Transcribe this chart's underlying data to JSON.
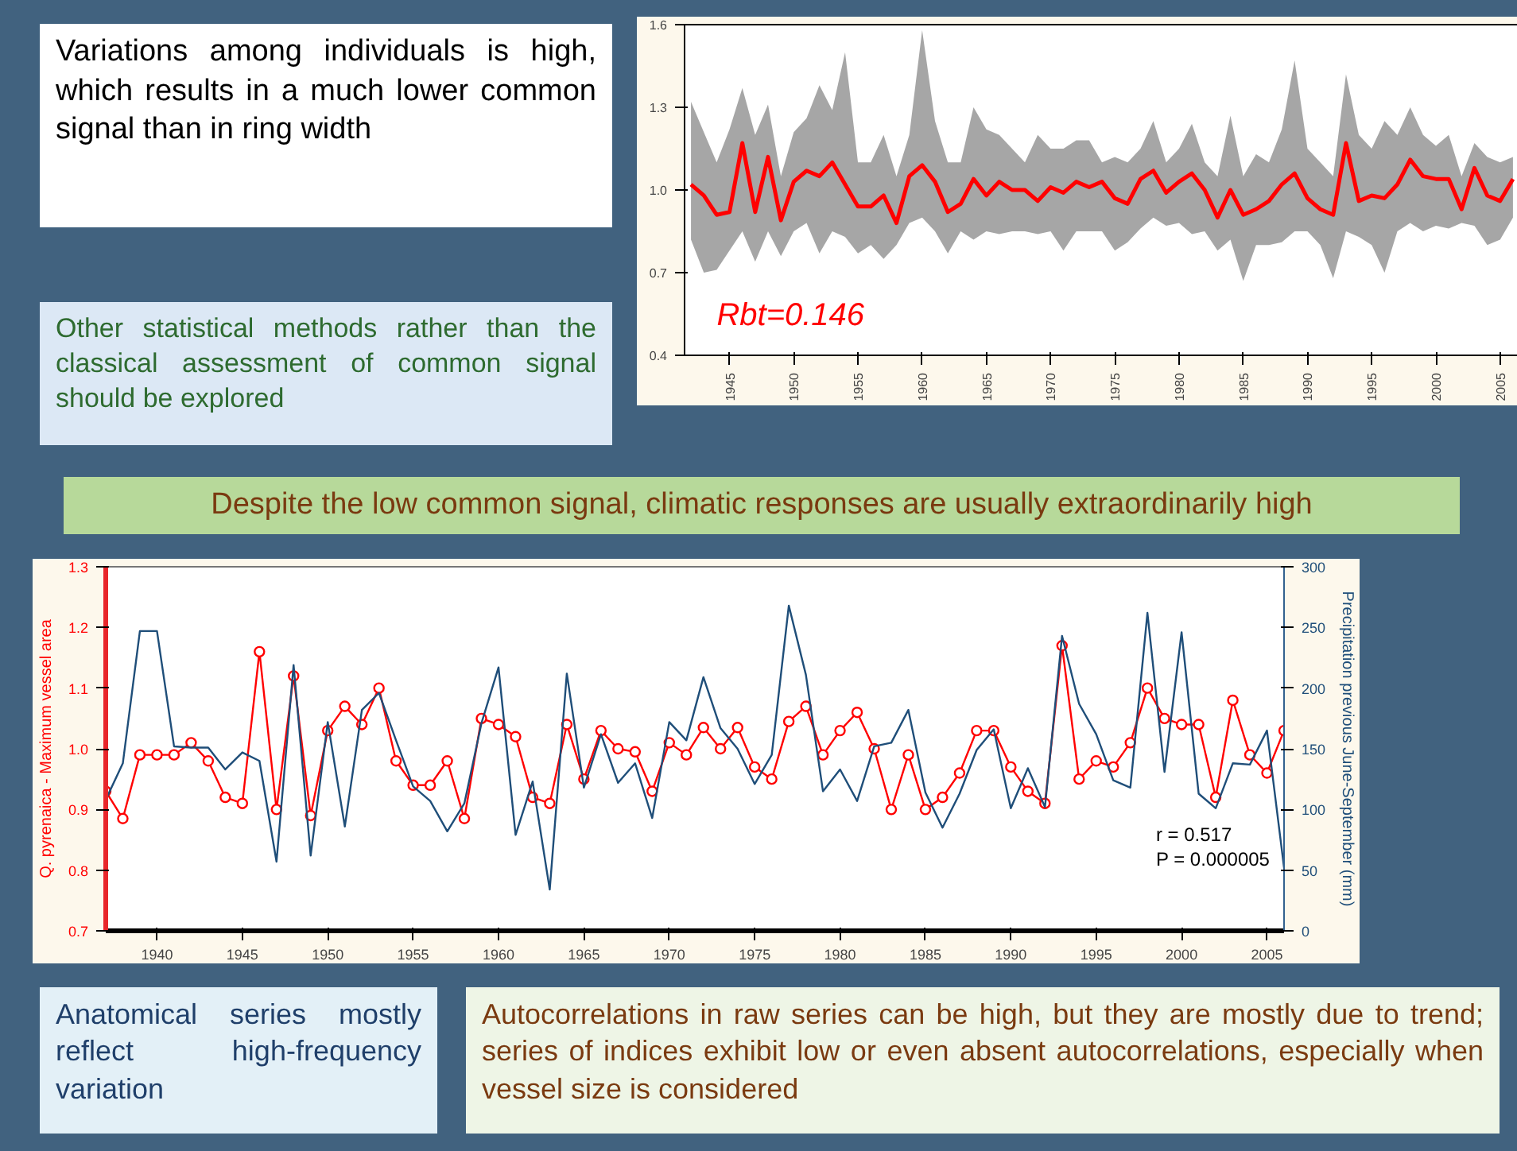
{
  "chart_data": [
    {
      "type": "line",
      "xlim": [
        1941.5,
        2006.5
      ],
      "ylim": [
        0.4,
        1.6
      ],
      "xticks": [
        1945,
        1950,
        1955,
        1960,
        1965,
        1970,
        1975,
        1980,
        1985,
        1990,
        1995,
        2000,
        2005
      ],
      "yticks": [
        0.4,
        0.7,
        {
          "value": 1,
          "label": "1.0"
        },
        1.3,
        1.6
      ],
      "grid": false,
      "x": [
        1942,
        1943,
        1944,
        1945,
        1946,
        1947,
        1948,
        1949,
        1950,
        1951,
        1952,
        1953,
        1954,
        1955,
        1956,
        1957,
        1958,
        1959,
        1960,
        1961,
        1962,
        1963,
        1964,
        1965,
        1966,
        1967,
        1968,
        1969,
        1970,
        1971,
        1972,
        1973,
        1974,
        1975,
        1976,
        1977,
        1978,
        1979,
        1980,
        1981,
        1982,
        1983,
        1984,
        1985,
        1986,
        1987,
        1988,
        1989,
        1990,
        1991,
        1992,
        1993,
        1994,
        1995,
        1996,
        1997,
        1998,
        1999,
        2000,
        2001,
        2002,
        2003,
        2004,
        2005,
        2006
      ],
      "series": [
        {
          "color": "#ff0000",
          "values": [
            1.02,
            0.98,
            0.91,
            0.92,
            1.17,
            0.92,
            1.12,
            0.89,
            1.03,
            1.07,
            1.05,
            1.1,
            1.02,
            0.94,
            0.94,
            0.98,
            0.88,
            1.05,
            1.09,
            1.03,
            0.92,
            0.95,
            1.04,
            0.98,
            1.03,
            1.0,
            1.0,
            0.96,
            1.01,
            0.99,
            1.03,
            1.01,
            1.03,
            0.97,
            0.95,
            1.04,
            1.07,
            0.99,
            1.03,
            1.06,
            1.0,
            0.9,
            1.0,
            0.91,
            0.93,
            0.96,
            1.02,
            1.06,
            0.97,
            0.93,
            0.91,
            1.17,
            0.96,
            0.98,
            0.97,
            1.02,
            1.11,
            1.05,
            1.04,
            1.04,
            0.93,
            1.08,
            0.98,
            0.96,
            1.04
          ],
          "upper": [
            1.32,
            1.21,
            1.1,
            1.22,
            1.37,
            1.2,
            1.31,
            1.05,
            1.21,
            1.26,
            1.38,
            1.29,
            1.5,
            1.1,
            1.1,
            1.2,
            1.05,
            1.2,
            1.58,
            1.25,
            1.1,
            1.1,
            1.3,
            1.22,
            1.2,
            1.15,
            1.1,
            1.2,
            1.15,
            1.15,
            1.18,
            1.18,
            1.1,
            1.12,
            1.1,
            1.15,
            1.25,
            1.1,
            1.15,
            1.24,
            1.1,
            1.05,
            1.27,
            1.05,
            1.13,
            1.1,
            1.22,
            1.47,
            1.15,
            1.1,
            1.05,
            1.42,
            1.2,
            1.15,
            1.25,
            1.2,
            1.3,
            1.2,
            1.16,
            1.2,
            1.05,
            1.17,
            1.12,
            1.1,
            1.12
          ],
          "lower": [
            0.82,
            0.7,
            0.71,
            0.78,
            0.85,
            0.74,
            0.85,
            0.76,
            0.85,
            0.88,
            0.77,
            0.85,
            0.83,
            0.77,
            0.8,
            0.75,
            0.8,
            0.88,
            0.9,
            0.85,
            0.77,
            0.85,
            0.82,
            0.85,
            0.84,
            0.85,
            0.85,
            0.84,
            0.85,
            0.78,
            0.85,
            0.85,
            0.85,
            0.78,
            0.81,
            0.86,
            0.9,
            0.87,
            0.88,
            0.84,
            0.85,
            0.78,
            0.82,
            0.67,
            0.8,
            0.8,
            0.81,
            0.85,
            0.85,
            0.8,
            0.68,
            0.85,
            0.83,
            0.8,
            0.7,
            0.85,
            0.88,
            0.85,
            0.87,
            0.86,
            0.88,
            0.87,
            0.8,
            0.82,
            0.9
          ]
        }
      ],
      "annotations": [
        "Variations among individuals is high, which results in a much lower common signal than in ring width",
        "Other statistical methods rather than the classical assessment of common signal should be explored",
        "Rbt=0.146"
      ]
    },
    {
      "type": "line",
      "xlim": [
        1937,
        2006
      ],
      "ylim": [
        0.7,
        1.3
      ],
      "y2lim": [
        0,
        300
      ],
      "xticks": [
        1940,
        1945,
        1950,
        1955,
        1960,
        1965,
        1970,
        1975,
        1980,
        1985,
        1990,
        1995,
        2000,
        2005
      ],
      "yticks": [
        0.7,
        0.8,
        0.9,
        {
          "value": 1,
          "label": "1.0"
        },
        1.1,
        1.2,
        1.3
      ],
      "y2ticks": [
        0,
        50,
        100,
        150,
        200,
        250,
        300
      ],
      "grid": false,
      "ylabel": "Q. pyrenaica - Maximum vessel area",
      "y2label": "Precipitation previous June-September (mm)",
      "x": [
        1937,
        1938,
        1939,
        1940,
        1941,
        1942,
        1943,
        1944,
        1945,
        1946,
        1947,
        1948,
        1949,
        1950,
        1951,
        1952,
        1953,
        1954,
        1955,
        1956,
        1957,
        1958,
        1959,
        1960,
        1961,
        1962,
        1963,
        1964,
        1965,
        1966,
        1967,
        1968,
        1969,
        1970,
        1971,
        1972,
        1973,
        1974,
        1975,
        1976,
        1977,
        1978,
        1979,
        1980,
        1981,
        1982,
        1983,
        1984,
        1985,
        1986,
        1987,
        1988,
        1989,
        1990,
        1991,
        1992,
        1993,
        1994,
        1995,
        1996,
        1997,
        1998,
        1999,
        2000,
        2001,
        2002,
        2003,
        2004,
        2005,
        2006
      ],
      "series": [
        {
          "color": "#ff0000",
          "marker": "circle",
          "values": [
            0.93,
            0.885,
            0.99,
            0.99,
            0.99,
            1.01,
            0.98,
            0.92,
            0.91,
            1.16,
            0.9,
            1.12,
            0.89,
            1.03,
            1.07,
            1.04,
            1.1,
            0.98,
            0.94,
            0.94,
            0.98,
            0.885,
            1.05,
            1.04,
            1.02,
            0.92,
            0.91,
            1.04,
            0.95,
            1.03,
            1.0,
            0.995,
            0.93,
            1.01,
            0.99,
            1.035,
            1.0,
            1.035,
            0.97,
            0.95,
            1.045,
            1.07,
            0.99,
            1.03,
            1.06,
            1.0,
            0.9,
            0.99,
            0.9,
            0.92,
            0.96,
            1.03,
            1.03,
            0.97,
            0.93,
            0.91,
            1.17,
            0.95,
            0.98,
            0.97,
            1.01,
            1.1,
            1.05,
            1.04,
            1.04,
            0.92,
            1.08,
            0.99,
            0.96,
            1.03
          ]
        },
        {
          "color": "#1f4e79",
          "axis": "y2",
          "values": [
            108,
            138,
            247,
            247,
            152,
            151,
            151,
            133,
            147,
            140,
            57,
            219,
            62,
            172,
            86,
            182,
            196,
            157,
            119,
            107,
            82,
            105,
            171,
            217,
            79,
            123,
            34,
            212,
            118,
            162,
            122,
            138,
            93,
            172,
            157,
            209,
            167,
            150,
            121,
            145,
            268,
            211,
            115,
            133,
            107,
            152,
            155,
            182,
            114,
            85,
            113,
            149,
            166,
            101,
            134,
            102,
            243,
            187,
            162,
            124,
            118,
            262,
            131,
            246,
            113,
            101,
            138,
            137,
            165,
            52
          ]
        }
      ],
      "annotations": [
        "Despite the low common signal, climatic responses are usually extraordinarily high",
        "r = 0.517",
        "P = 0.000005",
        "Anatomical series mostly reflect high-frequency variation",
        "Autocorrelations in raw series can be high, but they are mostly due to trend; series of indices exhibit low or even absent autocorrelations, especially when vessel size is considered"
      ]
    }
  ]
}
